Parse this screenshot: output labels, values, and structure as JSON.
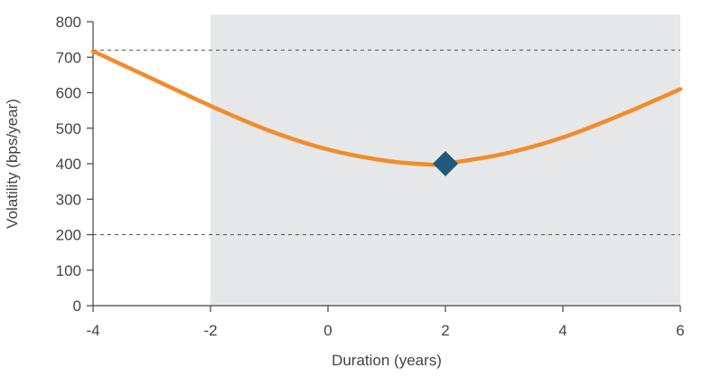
{
  "chart_data": {
    "type": "line",
    "title": "",
    "xlabel": "Duration (years)",
    "ylabel": "Volatility (bps/year)",
    "xlim": [
      -4,
      6
    ],
    "ylim": [
      0,
      800
    ],
    "x_ticks": [
      -4,
      -2,
      0,
      2,
      4,
      6
    ],
    "y_ticks": [
      0,
      100,
      200,
      300,
      400,
      500,
      600,
      700,
      800
    ],
    "x_tick_labels": [
      "-4",
      "-2",
      "0",
      "2",
      "4",
      "6"
    ],
    "y_tick_labels": [
      "0",
      "100",
      "200",
      "300",
      "400",
      "500",
      "600",
      "700",
      "800"
    ],
    "grid": false,
    "shaded_region": {
      "x_from": -2,
      "x_to": 6,
      "color": "#e6e7e8"
    },
    "reference_lines": [
      {
        "y": 720,
        "style": "dashed",
        "color": "#555555"
      },
      {
        "y": 200,
        "style": "dashed",
        "color": "#555555"
      }
    ],
    "series": [
      {
        "color": "#f28c28",
        "x": [
          -4,
          -3,
          -2,
          -1,
          0,
          1,
          1.8,
          2,
          3,
          4,
          5,
          6
        ],
        "y": [
          717,
          640,
          563,
          493,
          440,
          408,
          397,
          400,
          428,
          474,
          538,
          610
        ]
      }
    ],
    "markers": [
      {
        "x": 2,
        "y": 400,
        "shape": "diamond",
        "color": "#1f5a7a"
      }
    ]
  }
}
